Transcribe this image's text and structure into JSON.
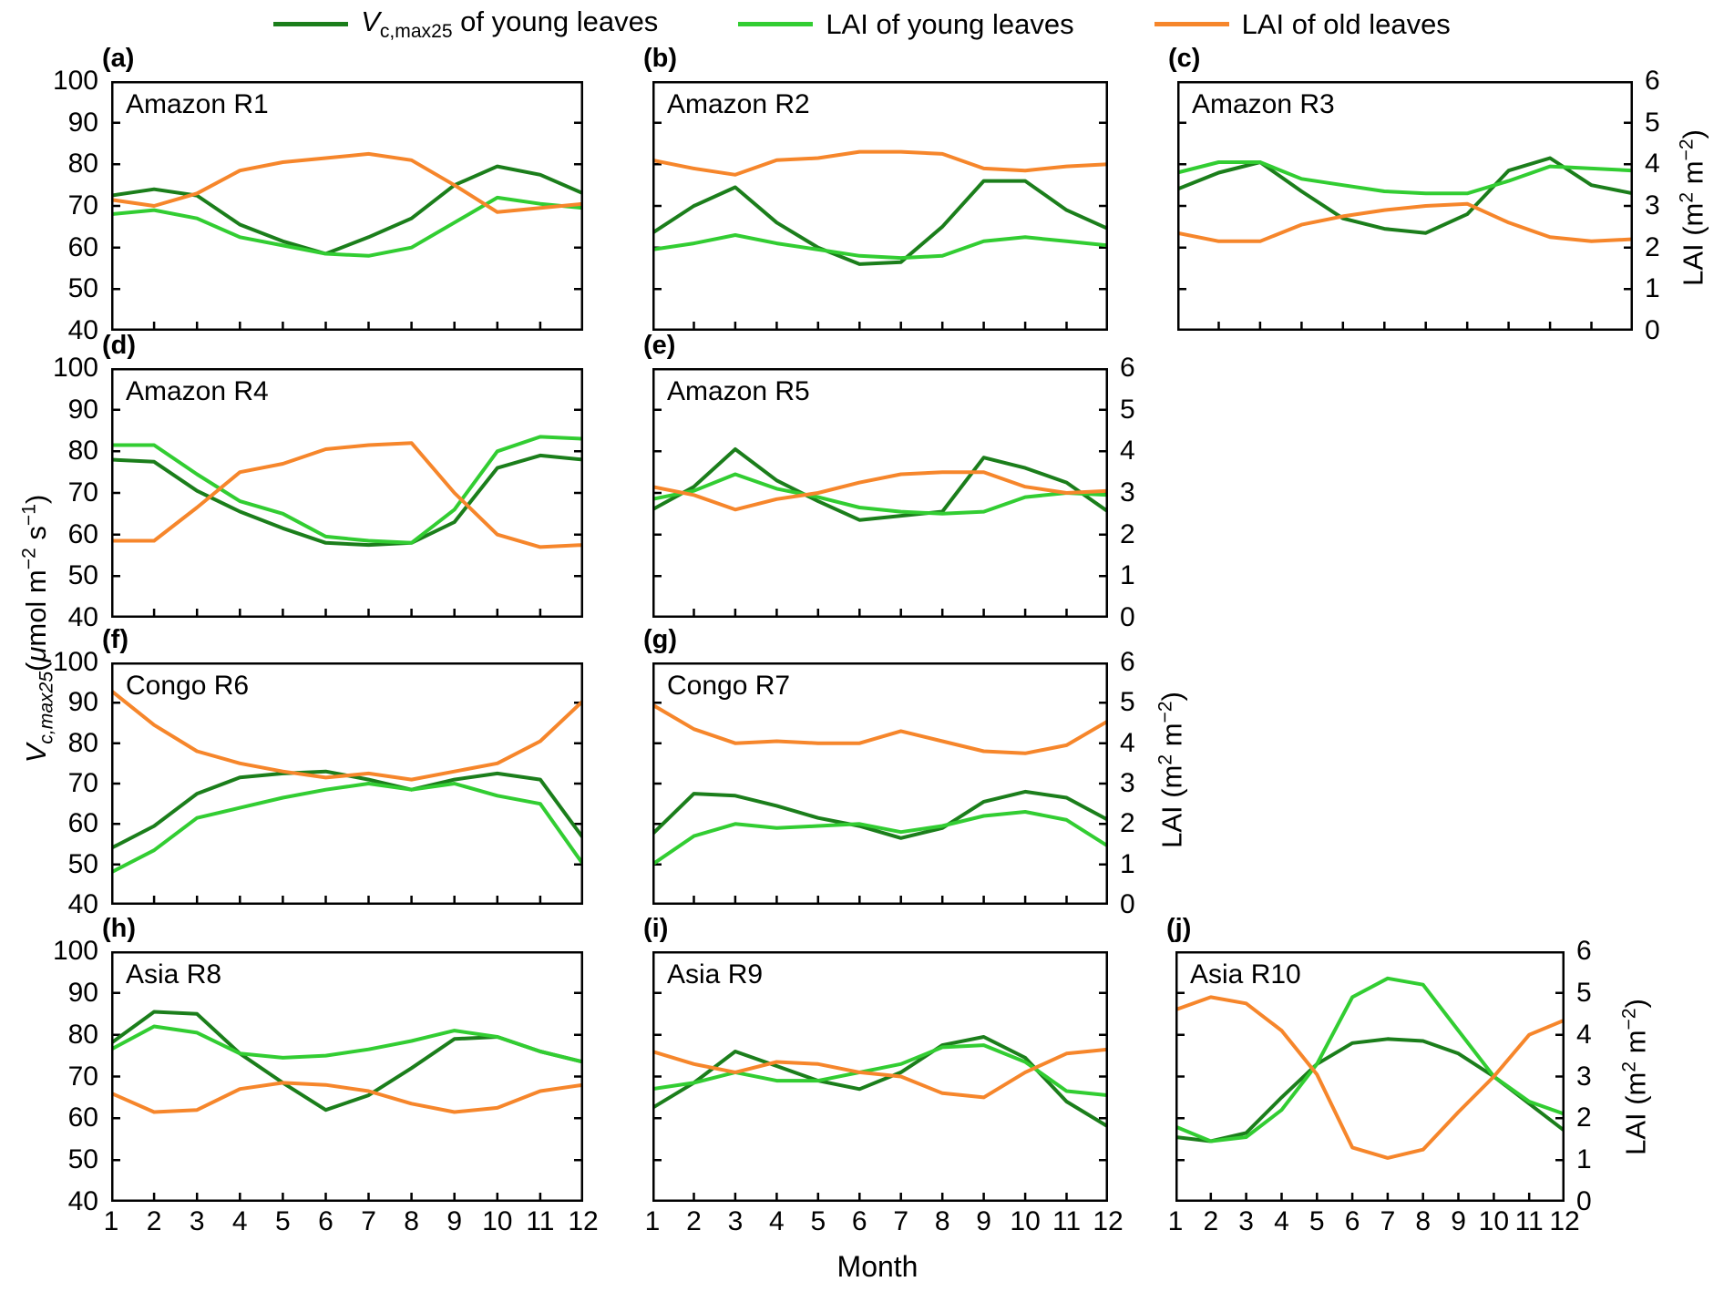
{
  "page": {
    "background": "#ffffff"
  },
  "legend": {
    "items": [
      {
        "id": "vcmax-young",
        "label_v": "V",
        "label_sub": "c,max25",
        "label_rest": " of young leaves",
        "color": "#1B7E1B"
      },
      {
        "id": "lai-young",
        "label": "LAI of young leaves",
        "color": "#32CD32"
      },
      {
        "id": "lai-old",
        "label": "LAI of old leaves",
        "color": "#F6862B"
      }
    ]
  },
  "axes": {
    "x_title": "Month",
    "y_left_title": {
      "v": "V",
      "vsub": "c,max25",
      "open": "(",
      "mu": "μ",
      "unit1": "mol m",
      "sup1": "−2",
      "unit2": " s",
      "sup2": "−1",
      "close": ")"
    },
    "y_right_title": {
      "pre": "LAI (m",
      "sup1": "2",
      "mid": " m",
      "sup2": "−2",
      "post": ")"
    },
    "vc_ticks": [
      100,
      90,
      80,
      70,
      60,
      50,
      40
    ],
    "lai_ticks": [
      6,
      5,
      4,
      3,
      2,
      1,
      0
    ],
    "month_ticks": [
      1,
      2,
      3,
      4,
      5,
      6,
      7,
      8,
      9,
      10,
      11,
      12
    ],
    "vc_range": [
      40,
      100
    ],
    "lai_range": [
      0,
      6
    ]
  },
  "colors": {
    "vcmax_young": "#1B7E1B",
    "lai_young": "#32CD32",
    "lai_old": "#F6862B",
    "axis": "#000000"
  },
  "chart_data": [
    {
      "type": "line",
      "panel": "(a)",
      "region": "Amazon R1",
      "row": 0,
      "col": 0,
      "left_labels": true,
      "right_labels": false,
      "bottom_labels": false,
      "narrow": false,
      "months": [
        1,
        2,
        3,
        4,
        5,
        6,
        7,
        8,
        9,
        10,
        11,
        12
      ],
      "vcmax_young": [
        72.5,
        74,
        72.5,
        65.5,
        61.5,
        58.5,
        62.5,
        67,
        75,
        79.5,
        77.5,
        73
      ],
      "lai_young": [
        2.8,
        2.9,
        2.7,
        2.25,
        2.05,
        1.85,
        1.8,
        2.0,
        2.6,
        3.2,
        3.05,
        2.95
      ],
      "lai_old": [
        3.15,
        3.0,
        3.3,
        3.85,
        4.05,
        4.15,
        4.25,
        4.1,
        3.5,
        2.85,
        2.95,
        3.05
      ]
    },
    {
      "type": "line",
      "panel": "(b)",
      "region": "Amazon R2",
      "row": 0,
      "col": 1,
      "left_labels": false,
      "right_labels": false,
      "bottom_labels": false,
      "narrow": false,
      "months": [
        1,
        2,
        3,
        4,
        5,
        6,
        7,
        8,
        9,
        10,
        11,
        12
      ],
      "vcmax_young": [
        63.5,
        70,
        74.5,
        66,
        60,
        56,
        56.5,
        65,
        76,
        76,
        69,
        64.5
      ],
      "lai_young": [
        1.95,
        2.1,
        2.3,
        2.1,
        1.95,
        1.8,
        1.75,
        1.8,
        2.15,
        2.25,
        2.15,
        2.05
      ],
      "lai_old": [
        4.1,
        3.9,
        3.75,
        4.1,
        4.15,
        4.3,
        4.3,
        4.25,
        3.9,
        3.85,
        3.95,
        4.0
      ]
    },
    {
      "type": "line",
      "panel": "(c)",
      "region": "Amazon R3",
      "row": 0,
      "col": 2,
      "left_labels": false,
      "right_labels": true,
      "bottom_labels": false,
      "narrow": false,
      "months": [
        1,
        2,
        3,
        4,
        5,
        6,
        7,
        8,
        9,
        10,
        11,
        12
      ],
      "vcmax_young": [
        74,
        78,
        80.5,
        73.5,
        67,
        64.5,
        63.5,
        68,
        78.5,
        81.5,
        75,
        73
      ],
      "lai_young": [
        3.8,
        4.05,
        4.05,
        3.65,
        3.5,
        3.35,
        3.3,
        3.3,
        3.6,
        3.95,
        3.9,
        3.85
      ],
      "lai_old": [
        2.35,
        2.15,
        2.15,
        2.55,
        2.75,
        2.9,
        3.0,
        3.05,
        2.6,
        2.25,
        2.15,
        2.2
      ]
    },
    {
      "type": "line",
      "panel": "(d)",
      "region": "Amazon R4",
      "row": 1,
      "col": 0,
      "left_labels": true,
      "right_labels": false,
      "bottom_labels": false,
      "narrow": false,
      "months": [
        1,
        2,
        3,
        4,
        5,
        6,
        7,
        8,
        9,
        10,
        11,
        12
      ],
      "vcmax_young": [
        78,
        77.5,
        70.5,
        65.5,
        61.5,
        58,
        57.5,
        58,
        63,
        76,
        79,
        78
      ],
      "lai_young": [
        4.15,
        4.15,
        3.45,
        2.8,
        2.5,
        1.95,
        1.85,
        1.8,
        2.6,
        4.0,
        4.35,
        4.3
      ],
      "lai_old": [
        1.85,
        1.85,
        2.65,
        3.5,
        3.7,
        4.05,
        4.15,
        4.2,
        3.0,
        2.0,
        1.7,
        1.75
      ]
    },
    {
      "type": "line",
      "panel": "(e)",
      "region": "Amazon R5",
      "row": 1,
      "col": 1,
      "left_labels": false,
      "right_labels": true,
      "bottom_labels": false,
      "narrow": false,
      "months": [
        1,
        2,
        3,
        4,
        5,
        6,
        7,
        8,
        9,
        10,
        11,
        12
      ],
      "vcmax_young": [
        66,
        71.5,
        80.5,
        73,
        68,
        63.5,
        64.5,
        65.5,
        78.5,
        76,
        72.5,
        65.5
      ],
      "lai_young": [
        2.85,
        3.05,
        3.45,
        3.1,
        2.9,
        2.65,
        2.55,
        2.5,
        2.55,
        2.9,
        3.0,
        2.95
      ],
      "lai_old": [
        3.15,
        2.95,
        2.6,
        2.85,
        3.0,
        3.25,
        3.45,
        3.5,
        3.5,
        3.15,
        3.0,
        3.05
      ]
    },
    {
      "type": "line",
      "panel": "(f)",
      "region": "Congo R6",
      "row": 2,
      "col": 0,
      "left_labels": true,
      "right_labels": false,
      "bottom_labels": false,
      "narrow": false,
      "months": [
        1,
        2,
        3,
        4,
        5,
        6,
        7,
        8,
        9,
        10,
        11,
        12
      ],
      "vcmax_young": [
        54,
        59.5,
        67.5,
        71.5,
        72.5,
        73,
        71,
        68.5,
        71,
        72.5,
        71,
        56.5
      ],
      "lai_young": [
        0.8,
        1.35,
        2.15,
        2.4,
        2.65,
        2.85,
        3.0,
        2.85,
        3.0,
        2.7,
        2.5,
        1.0
      ],
      "lai_old": [
        5.3,
        4.45,
        3.8,
        3.5,
        3.3,
        3.15,
        3.25,
        3.1,
        3.3,
        3.5,
        4.05,
        5.05
      ]
    },
    {
      "type": "line",
      "panel": "(g)",
      "region": "Congo R7",
      "row": 2,
      "col": 1,
      "left_labels": false,
      "right_labels": true,
      "bottom_labels": false,
      "narrow": false,
      "months": [
        1,
        2,
        3,
        4,
        5,
        6,
        7,
        8,
        9,
        10,
        11,
        12
      ],
      "vcmax_young": [
        57.5,
        67.5,
        67,
        64.5,
        61.5,
        59.5,
        56.5,
        59,
        65.5,
        68,
        66.5,
        61
      ],
      "lai_young": [
        1.0,
        1.7,
        2.0,
        1.9,
        1.95,
        2.0,
        1.8,
        1.95,
        2.2,
        2.3,
        2.1,
        1.45
      ],
      "lai_old": [
        4.95,
        4.35,
        4.0,
        4.05,
        4.0,
        4.0,
        4.3,
        4.05,
        3.8,
        3.75,
        3.95,
        4.55
      ]
    },
    {
      "type": "line",
      "panel": "(h)",
      "region": "Asia R8",
      "row": 3,
      "col": 0,
      "left_labels": true,
      "right_labels": false,
      "bottom_labels": true,
      "narrow": false,
      "months": [
        1,
        2,
        3,
        4,
        5,
        6,
        7,
        8,
        9,
        10,
        11,
        12
      ],
      "vcmax_young": [
        78,
        85.5,
        85,
        75.5,
        68.5,
        62,
        65.5,
        72,
        79,
        79.5,
        76,
        73.5
      ],
      "lai_young": [
        3.65,
        4.2,
        4.05,
        3.55,
        3.45,
        3.5,
        3.65,
        3.85,
        4.1,
        3.95,
        3.6,
        3.35
      ],
      "lai_old": [
        2.6,
        2.15,
        2.2,
        2.7,
        2.85,
        2.8,
        2.65,
        2.35,
        2.15,
        2.25,
        2.65,
        2.8
      ]
    },
    {
      "type": "line",
      "panel": "(i)",
      "region": "Asia R9",
      "row": 3,
      "col": 1,
      "left_labels": false,
      "right_labels": false,
      "bottom_labels": true,
      "narrow": false,
      "months": [
        1,
        2,
        3,
        4,
        5,
        6,
        7,
        8,
        9,
        10,
        11,
        12
      ],
      "vcmax_young": [
        62.5,
        68.5,
        76,
        72.5,
        69,
        67,
        71,
        77.5,
        79.5,
        74.5,
        64,
        58
      ],
      "lai_young": [
        2.7,
        2.85,
        3.1,
        2.9,
        2.9,
        3.1,
        3.3,
        3.7,
        3.75,
        3.35,
        2.65,
        2.55
      ],
      "lai_old": [
        3.6,
        3.3,
        3.1,
        3.35,
        3.3,
        3.1,
        3.0,
        2.6,
        2.5,
        3.1,
        3.55,
        3.65
      ]
    },
    {
      "type": "line",
      "panel": "(j)",
      "region": "Asia R10",
      "row": 3,
      "col": 2,
      "left_labels": false,
      "right_labels": true,
      "bottom_labels": true,
      "narrow": true,
      "months": [
        1,
        2,
        3,
        4,
        5,
        6,
        7,
        8,
        9,
        10,
        11,
        12
      ],
      "vcmax_young": [
        55.5,
        54.5,
        56.5,
        65,
        73,
        78,
        79,
        78.5,
        75.5,
        70,
        63.5,
        57
      ],
      "lai_young": [
        1.8,
        1.45,
        1.55,
        2.2,
        3.3,
        4.9,
        5.35,
        5.2,
        4.1,
        3.0,
        2.4,
        2.1
      ],
      "lai_old": [
        4.6,
        4.9,
        4.75,
        4.1,
        3.05,
        1.3,
        1.05,
        1.25,
        2.15,
        3.0,
        4.0,
        4.35
      ]
    }
  ]
}
